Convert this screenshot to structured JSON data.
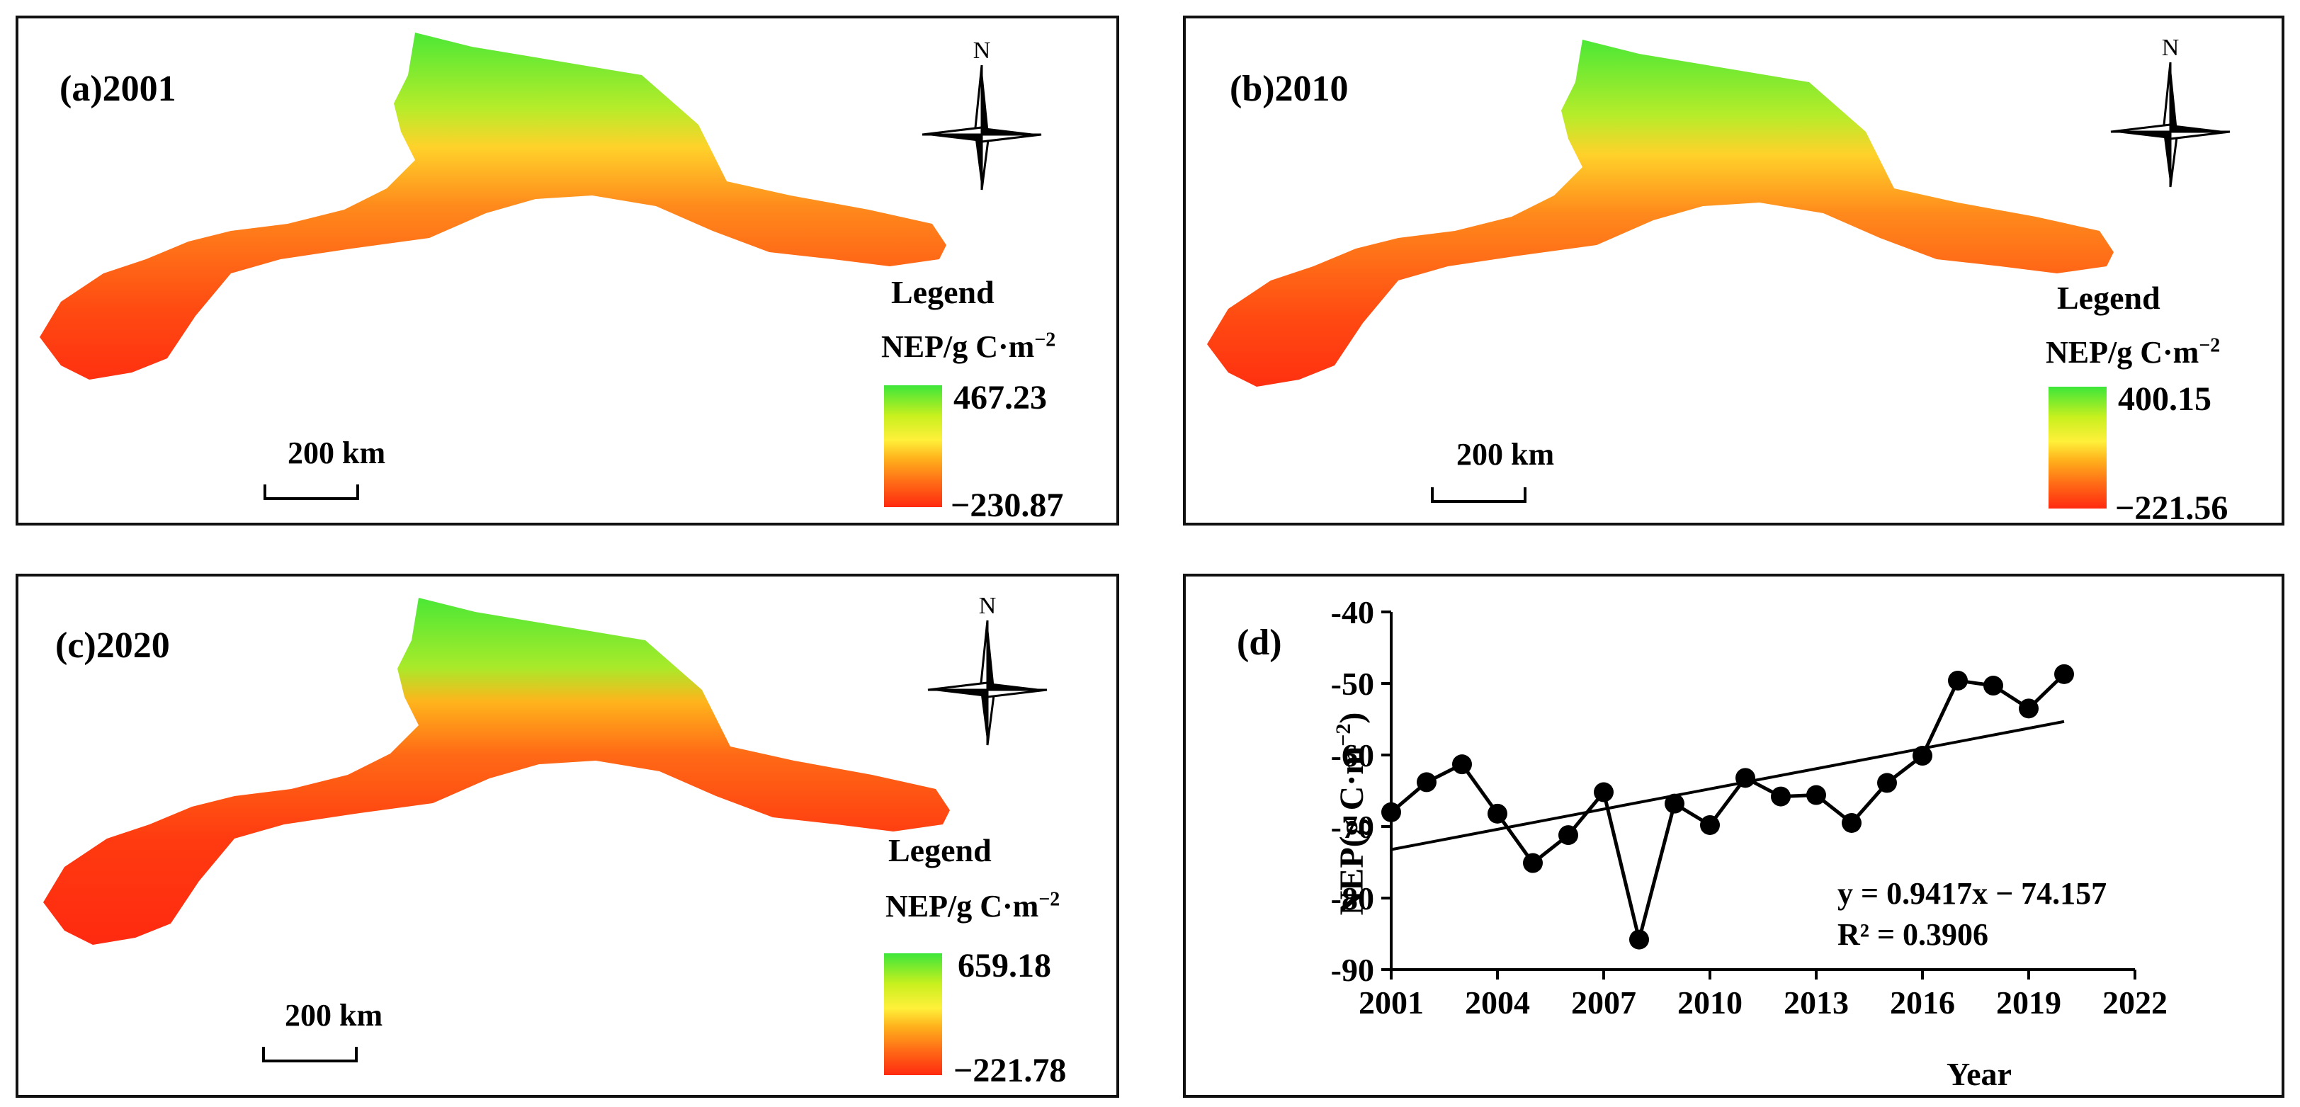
{
  "panels": [
    {
      "label": "(a)2001",
      "legend_title": "Legend",
      "unit": "NEP/g C·m",
      "unit_exp": "−2",
      "max": "467.23",
      "min": "−230.87",
      "scale": "200 km",
      "north": "N"
    },
    {
      "label": "(b)2010",
      "legend_title": "Legend",
      "unit": "NEP/g C·m",
      "unit_exp": "−2",
      "max": "400.15",
      "min": "−221.56",
      "scale": "200 km",
      "north": "N"
    },
    {
      "label": "(c)2020",
      "legend_title": "Legend",
      "unit": "NEP/g C·m",
      "unit_exp": "−2",
      "max": "659.18",
      "min": "−221.78",
      "scale": "200 km",
      "north": "N"
    }
  ],
  "colors": {
    "high": "#3de63a",
    "mid": "#fff03a",
    "low": "#ff2a10",
    "frame": "#111111"
  },
  "chart_data": {
    "type": "line",
    "panel_label": "(d)",
    "x": [
      2001,
      2002,
      2003,
      2004,
      2005,
      2006,
      2007,
      2008,
      2009,
      2010,
      2011,
      2012,
      2013,
      2014,
      2015,
      2016,
      2017,
      2018,
      2019,
      2020
    ],
    "series": [
      {
        "name": "NEP",
        "values": [
          -68,
          -63.8,
          -61.3,
          -68.2,
          -75.1,
          -71.2,
          -65.2,
          -85.8,
          -66.8,
          -69.8,
          -63.2,
          -65.8,
          -65.6,
          -69.5,
          -63.9,
          -60.1,
          -49.6,
          -50.3,
          -53.5,
          -48.7
        ]
      }
    ],
    "trendline": {
      "slope": 0.9417,
      "intercept": -74.157,
      "x_start": 2001,
      "x_end": 2020
    },
    "equation": "y = 0.9417x − 74.157",
    "r2": "R² = 0.3906",
    "xlabel": "Year",
    "ylabel": "NEP(g C·m",
    "ylabel_exp": "−2",
    "ylabel_close": ")",
    "xlim": [
      2001,
      2022
    ],
    "ylim": [
      -90,
      -40
    ],
    "xticks": [
      2001,
      2004,
      2007,
      2010,
      2013,
      2016,
      2019,
      2022
    ],
    "yticks": [
      -40,
      -50,
      -60,
      -70,
      -80,
      -90
    ]
  }
}
